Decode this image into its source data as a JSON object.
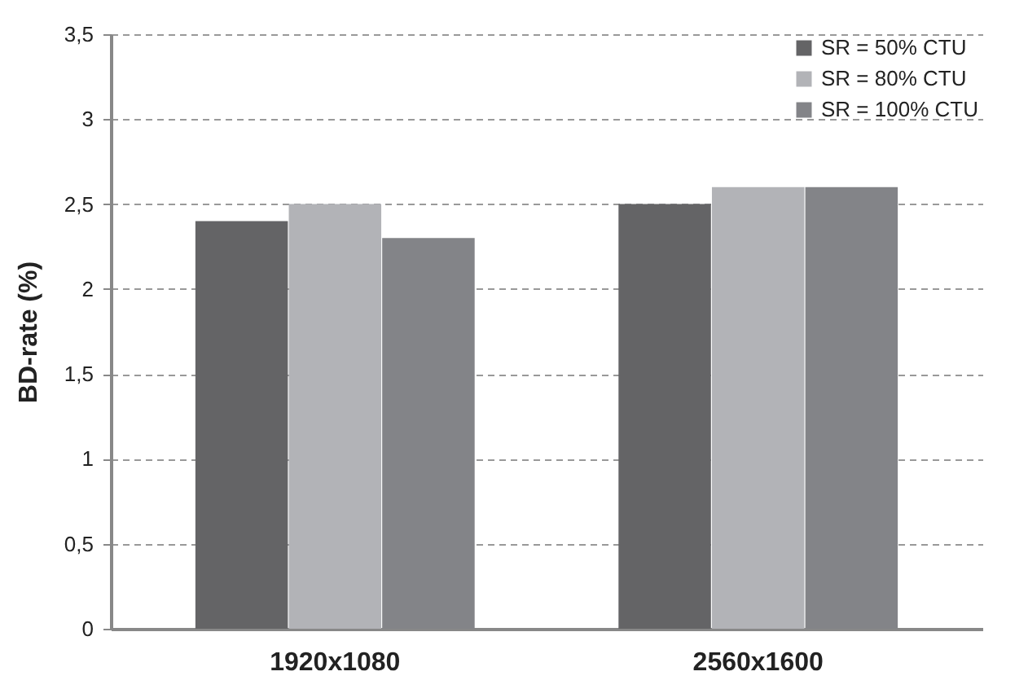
{
  "chart_data": {
    "type": "bar",
    "ylabel": "BD-rate (%)",
    "categories": [
      "1920x1080",
      "2560x1600"
    ],
    "series": [
      {
        "name": "SR = 50% CTU",
        "color": "#646466",
        "values": [
          2.4,
          2.5
        ]
      },
      {
        "name": "SR = 80% CTU",
        "color": "#b2b3b7",
        "values": [
          2.5,
          2.6
        ]
      },
      {
        "name": "SR = 100% CTU",
        "color": "#838488",
        "values": [
          2.3,
          2.6
        ]
      }
    ],
    "ylim": [
      0,
      3.5
    ],
    "yticks": [
      0,
      {
        "value": 0.5,
        "label": "0,5"
      },
      1,
      {
        "value": 1.5,
        "label": "1,5"
      },
      2,
      {
        "value": 2.5,
        "label": "2,5"
      },
      3,
      {
        "value": 3.5,
        "label": "3,5"
      }
    ],
    "grid": "y",
    "legend": "top right"
  }
}
